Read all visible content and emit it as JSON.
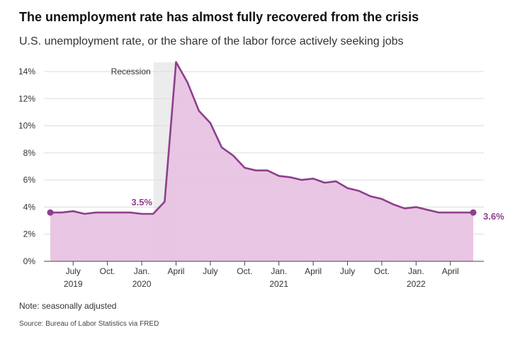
{
  "header": {
    "title": "The unemployment rate has almost fully recovered from the crisis",
    "subtitle": "U.S. unemployment rate, or the share of the labor force actively seeking jobs"
  },
  "footer": {
    "note": "Note: seasonally adjusted",
    "source": "Source: Bureau of Labor Statistics via FRED"
  },
  "chart_data": {
    "type": "area",
    "title": "The unemployment rate has almost fully recovered from the crisis",
    "subtitle": "U.S. unemployment rate, or the share of the labor force actively seeking jobs",
    "ylim": [
      0,
      14
    ],
    "y_ticks": [
      "0%",
      "2%",
      "4%",
      "6%",
      "8%",
      "10%",
      "12%",
      "14%"
    ],
    "y_tick_values": [
      0,
      2,
      4,
      6,
      8,
      10,
      12,
      14
    ],
    "x_ticks": [
      {
        "date": "2019-07",
        "label": "July",
        "year": "2019"
      },
      {
        "date": "2019-10",
        "label": "Oct.",
        "year": ""
      },
      {
        "date": "2020-01",
        "label": "Jan.",
        "year": "2020"
      },
      {
        "date": "2020-04",
        "label": "April",
        "year": ""
      },
      {
        "date": "2020-07",
        "label": "July",
        "year": ""
      },
      {
        "date": "2020-10",
        "label": "Oct.",
        "year": ""
      },
      {
        "date": "2021-01",
        "label": "Jan.",
        "year": "2021"
      },
      {
        "date": "2021-04",
        "label": "April",
        "year": ""
      },
      {
        "date": "2021-07",
        "label": "July",
        "year": ""
      },
      {
        "date": "2021-10",
        "label": "Oct.",
        "year": ""
      },
      {
        "date": "2022-01",
        "label": "Jan.",
        "year": "2022"
      },
      {
        "date": "2022-04",
        "label": "April",
        "year": ""
      }
    ],
    "recession": {
      "label": "Recession",
      "start": "2020-02",
      "end": "2020-04"
    },
    "grid": true,
    "legend": "none",
    "colors": {
      "line": "#8e3f8e",
      "fill": "#e8c3e2",
      "recession": "#ececec"
    },
    "series": [
      {
        "x": [
          "2019-05",
          "2019-06",
          "2019-07",
          "2019-08",
          "2019-09",
          "2019-10",
          "2019-11",
          "2019-12",
          "2020-01",
          "2020-02",
          "2020-03",
          "2020-04",
          "2020-05",
          "2020-06",
          "2020-07",
          "2020-08",
          "2020-09",
          "2020-10",
          "2020-11",
          "2020-12",
          "2021-01",
          "2021-02",
          "2021-03",
          "2021-04",
          "2021-05",
          "2021-06",
          "2021-07",
          "2021-08",
          "2021-09",
          "2021-10",
          "2021-11",
          "2021-12",
          "2022-01",
          "2022-02",
          "2022-03",
          "2022-04",
          "2022-05",
          "2022-06"
        ],
        "values": [
          3.6,
          3.6,
          3.7,
          3.5,
          3.6,
          3.6,
          3.6,
          3.6,
          3.5,
          3.5,
          4.4,
          14.7,
          13.2,
          11.1,
          10.2,
          8.4,
          7.8,
          6.9,
          6.7,
          6.7,
          6.3,
          6.2,
          6.0,
          6.1,
          5.8,
          5.9,
          5.4,
          5.2,
          4.8,
          4.6,
          4.2,
          3.9,
          4.0,
          3.8,
          3.6,
          3.6,
          3.6,
          3.6
        ]
      }
    ],
    "annotations": [
      {
        "date": "2020-02",
        "value": 3.5,
        "label": "3.5%"
      },
      {
        "date": "2022-06",
        "value": 3.6,
        "label": "3.6%"
      }
    ]
  }
}
